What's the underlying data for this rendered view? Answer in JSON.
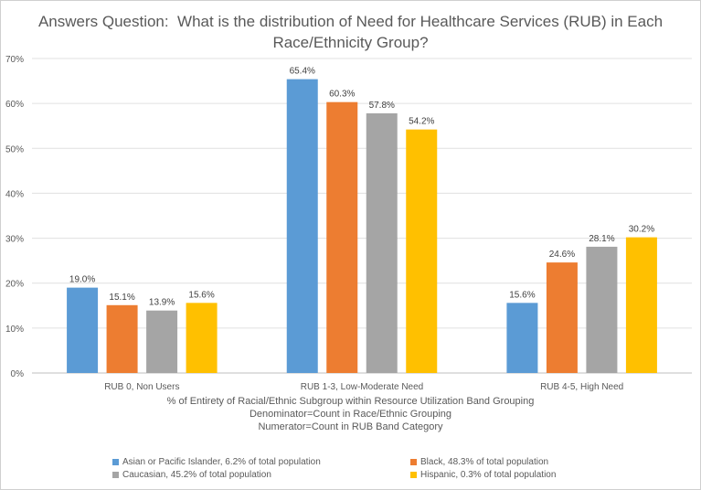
{
  "chart_data": {
    "type": "bar",
    "title_lines": [
      "Answers Question:  What is the distribution of Need for Healthcare Services (RUB) in Each",
      "Race/Ethnicity Group?"
    ],
    "categories": [
      "RUB 0, Non Users",
      "RUB 1-3, Low-Moderate Need",
      "RUB 4-5, High Need"
    ],
    "series": [
      {
        "name": "Asian or Pacific Islander, 6.2% of total population",
        "color": "#5b9bd5",
        "values": [
          19.0,
          65.4,
          15.6
        ],
        "labels": [
          "19.0%",
          "65.4%",
          "15.6%"
        ]
      },
      {
        "name": "Black, 48.3% of total population",
        "color": "#ed7d31",
        "values": [
          15.1,
          60.3,
          24.6
        ],
        "labels": [
          "15.1%",
          "60.3%",
          "24.6%"
        ]
      },
      {
        "name": "Caucasian, 45.2% of total population",
        "color": "#a5a5a5",
        "values": [
          13.9,
          57.8,
          28.1
        ],
        "labels": [
          "13.9%",
          "57.8%",
          "28.1%"
        ]
      },
      {
        "name": "Hispanic, 0.3% of total population",
        "color": "#ffc000",
        "values": [
          15.6,
          54.2,
          30.2
        ],
        "labels": [
          "15.6%",
          "54.2%",
          "30.2%"
        ]
      }
    ],
    "xlabel_lines": [
      "% of Entirety of Racial/Ethnic Subgroup within Resource Utilization Band Grouping",
      "Denominator=Count in Race/Ethnic Grouping",
      "Numerator=Count in RUB Band Category"
    ],
    "ylim": [
      0,
      70
    ],
    "yticks": [
      "0%",
      "10%",
      "20%",
      "30%",
      "40%",
      "50%",
      "60%",
      "70%"
    ],
    "grid": true,
    "legend_position": "bottom"
  }
}
